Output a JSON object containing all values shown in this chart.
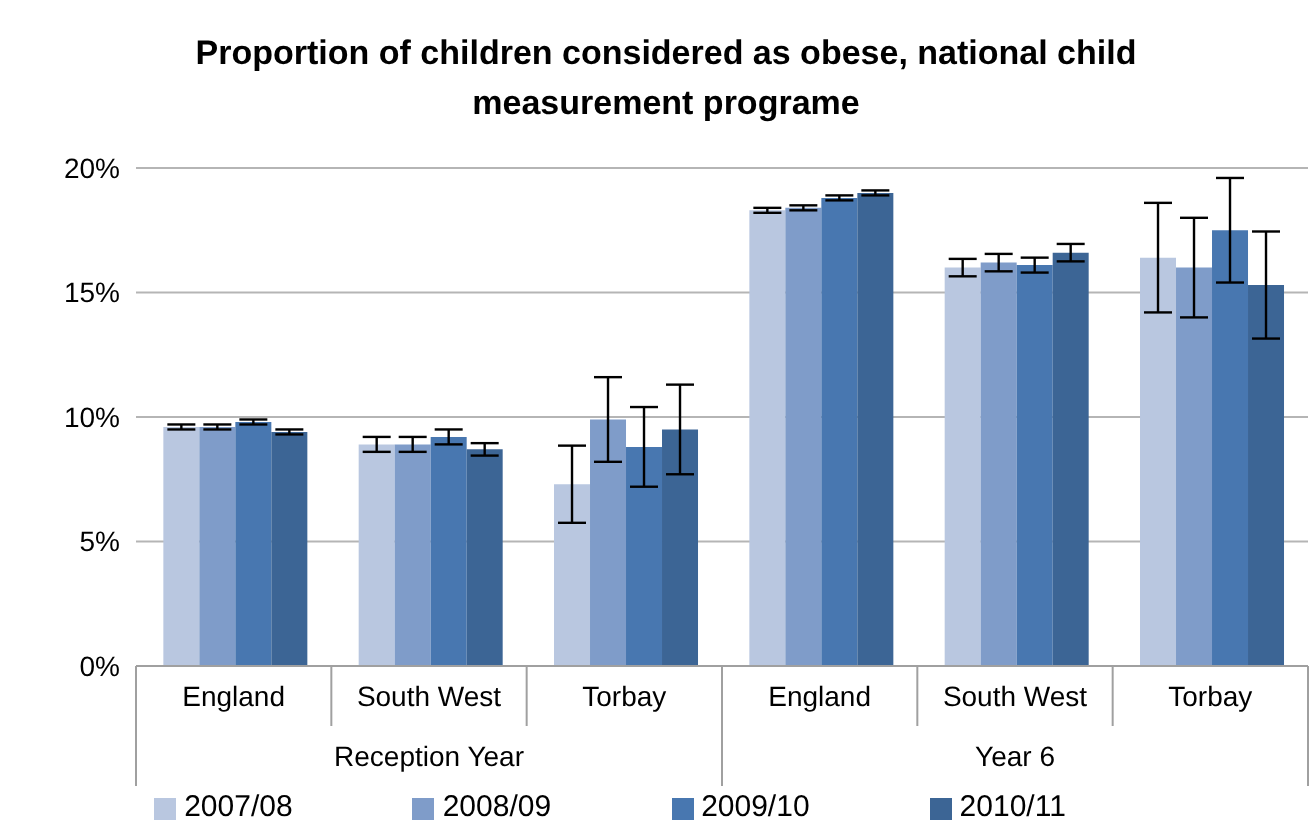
{
  "chart_data": {
    "type": "bar",
    "title": "Proportion of children considered as obese, national child measurement programe",
    "categories": [
      "England",
      "South West",
      "Torbay",
      "England",
      "South West",
      "Torbay"
    ],
    "series": [
      {
        "name": "2007/08",
        "color": "#b9c7e0",
        "values": [
          9.6,
          8.9,
          7.3,
          18.3,
          16.0,
          16.4
        ],
        "errors": [
          0.1,
          0.3,
          1.55,
          0.1,
          0.35,
          2.2
        ]
      },
      {
        "name": "2008/09",
        "color": "#7f9cc9",
        "values": [
          9.6,
          8.9,
          9.9,
          18.4,
          16.2,
          16.0
        ],
        "errors": [
          0.1,
          0.3,
          1.7,
          0.1,
          0.35,
          2.0
        ]
      },
      {
        "name": "2009/10",
        "color": "#4877b0",
        "values": [
          9.8,
          9.2,
          8.8,
          18.8,
          16.1,
          17.5
        ],
        "errors": [
          0.1,
          0.3,
          1.6,
          0.1,
          0.3,
          2.1
        ]
      },
      {
        "name": "2010/11",
        "color": "#3c6595",
        "values": [
          9.4,
          8.7,
          9.5,
          19.0,
          16.6,
          15.3
        ],
        "errors": [
          0.1,
          0.25,
          1.8,
          0.1,
          0.35,
          2.15
        ]
      }
    ],
    "annotations": [
      "Reception Year",
      "Year 6"
    ],
    "ylim": [
      0,
      20
    ],
    "yticks": [
      {
        "value": 0,
        "label": "0%"
      },
      {
        "value": 5,
        "label": "5%"
      },
      {
        "value": 10,
        "label": "10%"
      },
      {
        "value": 15,
        "label": "15%"
      },
      {
        "value": 20,
        "label": "20%"
      }
    ],
    "grid": "y",
    "legend": "bottom"
  }
}
